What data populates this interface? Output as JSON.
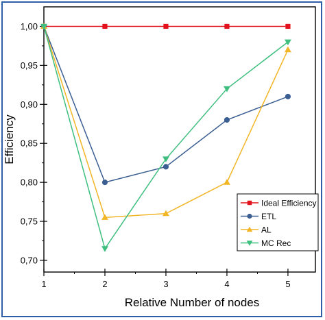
{
  "chart_data": {
    "type": "line",
    "x": [
      1,
      2,
      3,
      4,
      5
    ],
    "xlabel": "Relative Number of nodes",
    "ylabel": "Efficiency",
    "xlim": [
      1,
      5.45
    ],
    "ylim": [
      0.685,
      1.025
    ],
    "x_ticks": [
      1,
      2,
      3,
      4,
      5
    ],
    "x_tick_labels": [
      "1",
      "2",
      "3",
      "4",
      "5"
    ],
    "y_ticks": [
      0.7,
      0.75,
      0.8,
      0.85,
      0.9,
      0.95,
      1.0
    ],
    "y_tick_labels": [
      "0,70",
      "0,75",
      "0,80",
      "0,85",
      "0,90",
      "0,95",
      "1,00"
    ],
    "grid": false,
    "legend_position": "bottom-right",
    "series": [
      {
        "name": "Ideal Efficiency",
        "values": [
          1.0,
          1.0,
          1.0,
          1.0,
          1.0
        ],
        "color": "#e3111b",
        "marker": "square"
      },
      {
        "name": "ETL",
        "values": [
          1.0,
          0.8,
          0.82,
          0.88,
          0.91
        ],
        "color": "#3a5e92",
        "marker": "circle"
      },
      {
        "name": "AL",
        "values": [
          1.0,
          0.755,
          0.76,
          0.8,
          0.97
        ],
        "color": "#f2b526",
        "marker": "triangle-up"
      },
      {
        "name": "MC Rec",
        "values": [
          1.0,
          0.715,
          0.83,
          0.92,
          0.98
        ],
        "color": "#3fbf7f",
        "marker": "triangle-down"
      }
    ]
  }
}
